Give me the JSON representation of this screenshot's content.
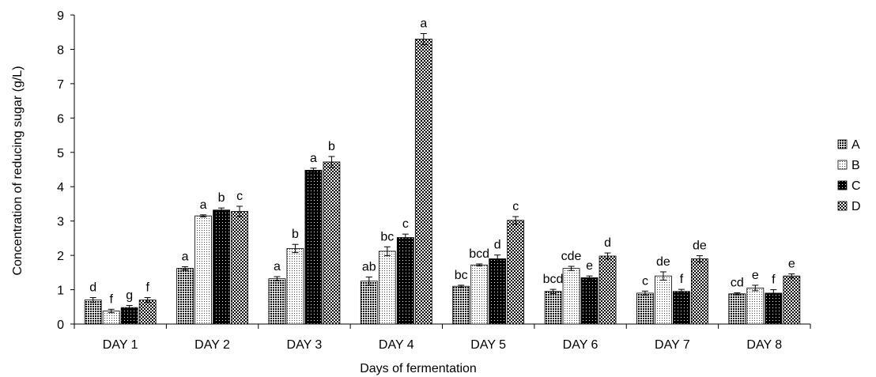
{
  "chart_data": {
    "type": "bar",
    "xlabel": "Days of fermentation",
    "ylabel": "Concentration of reducing sugar (g/L)",
    "ylim": [
      0,
      9
    ],
    "yticks": [
      "0",
      "1",
      "2",
      "3",
      "4",
      "5",
      "6",
      "7",
      "8",
      "9"
    ],
    "categories": [
      "DAY 1",
      "DAY 2",
      "DAY 3",
      "DAY 4",
      "DAY 5",
      "DAY 6",
      "DAY 7",
      "DAY 8"
    ],
    "legend_position": "right",
    "grid": false,
    "series": [
      {
        "name": "A",
        "pattern": "dense-dots",
        "values": [
          0.7,
          1.62,
          1.32,
          1.25,
          1.1,
          0.95,
          0.9,
          0.88
        ],
        "errors": [
          0.07,
          0.05,
          0.06,
          0.12,
          0.03,
          0.06,
          0.06,
          0.03
        ],
        "letters": [
          "d",
          "a",
          "a",
          "ab",
          "bc",
          "bcd",
          "c",
          "cd"
        ]
      },
      {
        "name": "B",
        "pattern": "sparse-dots",
        "values": [
          0.38,
          3.15,
          2.2,
          2.12,
          1.72,
          1.62,
          1.4,
          1.05
        ],
        "errors": [
          0.05,
          0.03,
          0.12,
          0.13,
          0.03,
          0.06,
          0.12,
          0.08
        ],
        "letters": [
          "f",
          "a",
          "b",
          "bc",
          "bcd",
          "cde",
          "de",
          "e"
        ]
      },
      {
        "name": "C",
        "pattern": "black-dots",
        "values": [
          0.48,
          3.32,
          4.48,
          2.52,
          1.9,
          1.35,
          0.95,
          0.9
        ],
        "errors": [
          0.06,
          0.06,
          0.06,
          0.1,
          0.11,
          0.05,
          0.06,
          0.1
        ],
        "letters": [
          "g",
          "b",
          "a",
          "c",
          "d",
          "e",
          "f",
          "f"
        ]
      },
      {
        "name": "D",
        "pattern": "checker",
        "values": [
          0.7,
          3.28,
          4.72,
          8.3,
          3.02,
          1.98,
          1.9,
          1.4
        ],
        "errors": [
          0.07,
          0.15,
          0.16,
          0.16,
          0.11,
          0.09,
          0.09,
          0.06
        ],
        "letters": [
          "f",
          "c",
          "b",
          "a",
          "c",
          "d",
          "de",
          "e"
        ]
      }
    ]
  }
}
